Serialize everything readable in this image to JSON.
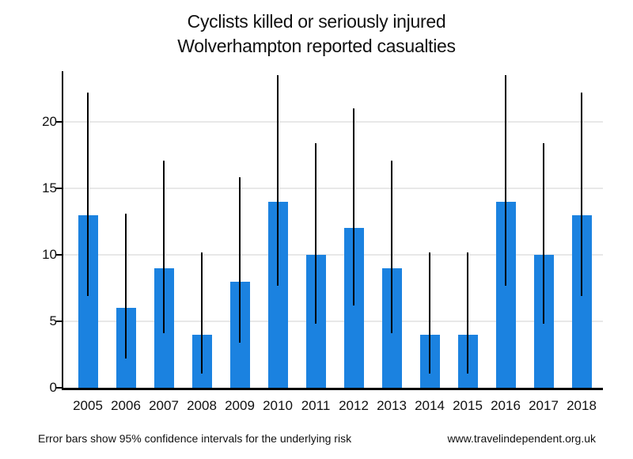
{
  "title": {
    "line1": "Cyclists killed or seriously injured",
    "line2": "Wolverhampton reported casualties"
  },
  "footer": {
    "note": "Error bars show 95% confidence intervals for the underlying risk",
    "website": "www.travelindependent.org.uk"
  },
  "chart_data": {
    "type": "bar",
    "title": "Cyclists killed or seriously injured",
    "subtitle": "Wolverhampton reported casualties",
    "categories": [
      "2005",
      "2006",
      "2007",
      "2008",
      "2009",
      "2010",
      "2011",
      "2012",
      "2013",
      "2014",
      "2015",
      "2016",
      "2017",
      "2018"
    ],
    "values": [
      13,
      6,
      9,
      4,
      8,
      14,
      10,
      12,
      9,
      4,
      4,
      14,
      10,
      13
    ],
    "error_low": [
      6.9,
      2.2,
      4.1,
      1.1,
      3.4,
      7.7,
      4.8,
      6.2,
      4.1,
      1.1,
      1.1,
      7.7,
      4.8,
      6.9
    ],
    "error_high": [
      22.2,
      13.1,
      17.1,
      10.2,
      15.8,
      23.5,
      18.4,
      21.0,
      17.1,
      10.2,
      10.2,
      23.5,
      18.4,
      22.2
    ],
    "xlabel": "",
    "ylabel": "",
    "yticks": [
      0,
      5,
      10,
      15,
      20
    ],
    "ylim": [
      0,
      23.8
    ],
    "grid": "horizontal",
    "legend": "none",
    "bar_color": "#1b82e0",
    "error_bar_color": "#000000",
    "gridline_color": "#e8e8e8",
    "errorbar_note": "95% confidence intervals"
  }
}
